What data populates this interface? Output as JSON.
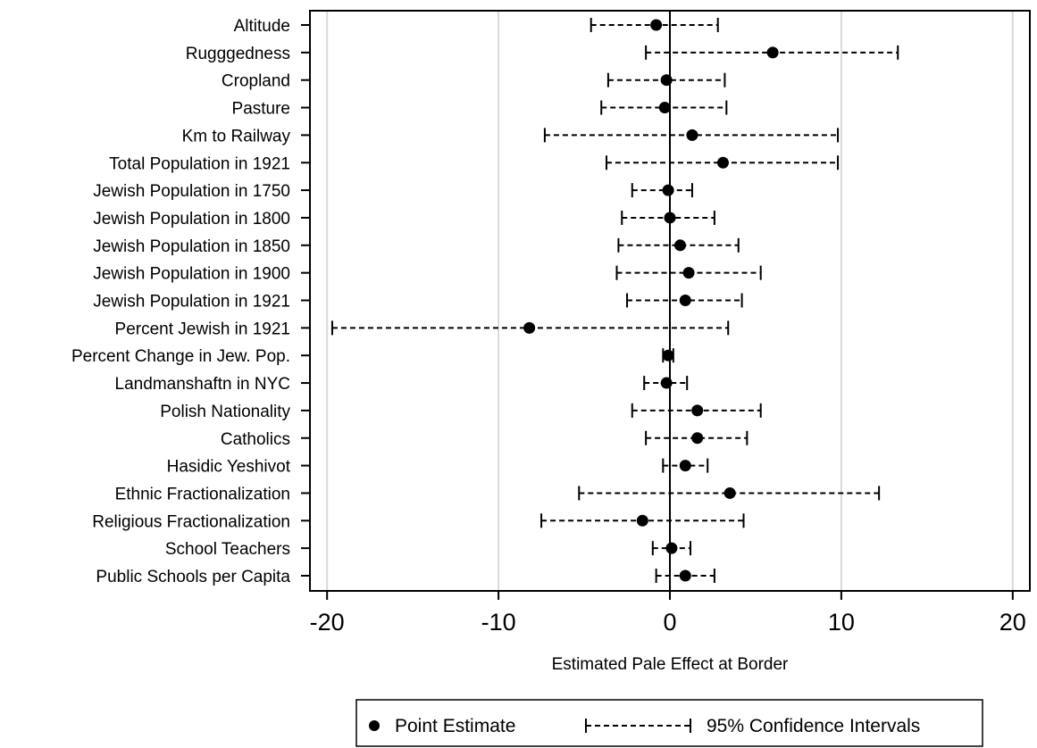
{
  "chart_data": {
    "type": "scatter",
    "xlabel": "Estimated Pale Effect at Border",
    "xlim": [
      -21,
      21
    ],
    "xticks": [
      -20,
      -10,
      0,
      10,
      20
    ],
    "xtick_labels": [
      "-20",
      "-10",
      "0",
      "10",
      "20"
    ],
    "grid": "vertical",
    "legend_position": "bottom",
    "legend": {
      "point_label": "Point Estimate",
      "ci_label": "95% Confidence Intervals"
    },
    "rows": [
      {
        "label": "Altitude",
        "estimate": -0.8,
        "lower": -4.6,
        "upper": 2.8
      },
      {
        "label": "Rugggedness",
        "estimate": 6.0,
        "lower": -1.4,
        "upper": 13.3
      },
      {
        "label": "Cropland",
        "estimate": -0.2,
        "lower": -3.6,
        "upper": 3.2
      },
      {
        "label": "Pasture",
        "estimate": -0.3,
        "lower": -4.0,
        "upper": 3.3
      },
      {
        "label": "Km to Railway",
        "estimate": 1.3,
        "lower": -7.3,
        "upper": 9.8
      },
      {
        "label": "Total Population in 1921",
        "estimate": 3.1,
        "lower": -3.7,
        "upper": 9.8
      },
      {
        "label": "Jewish Population in 1750",
        "estimate": -0.1,
        "lower": -2.2,
        "upper": 1.3
      },
      {
        "label": "Jewish Population in 1800",
        "estimate": 0.0,
        "lower": -2.8,
        "upper": 2.6
      },
      {
        "label": "Jewish Population in 1850",
        "estimate": 0.6,
        "lower": -3.0,
        "upper": 4.0
      },
      {
        "label": "Jewish Population in 1900",
        "estimate": 1.1,
        "lower": -3.1,
        "upper": 5.3
      },
      {
        "label": "Jewish Population in 1921",
        "estimate": 0.9,
        "lower": -2.5,
        "upper": 4.2
      },
      {
        "label": "Percent Jewish in 1921",
        "estimate": -8.2,
        "lower": -19.7,
        "upper": 3.4
      },
      {
        "label": "Percent Change in Jew. Pop.",
        "estimate": -0.1,
        "lower": -0.4,
        "upper": 0.2
      },
      {
        "label": "Landmanshaftn in NYC",
        "estimate": -0.2,
        "lower": -1.5,
        "upper": 1.0
      },
      {
        "label": "Polish Nationality",
        "estimate": 1.6,
        "lower": -2.2,
        "upper": 5.3
      },
      {
        "label": "Catholics",
        "estimate": 1.6,
        "lower": -1.4,
        "upper": 4.5
      },
      {
        "label": "Hasidic Yeshivot",
        "estimate": 0.9,
        "lower": -0.4,
        "upper": 2.2
      },
      {
        "label": "Ethnic Fractionalization",
        "estimate": 3.5,
        "lower": -5.3,
        "upper": 12.2
      },
      {
        "label": "Religious Fractionalization",
        "estimate": -1.6,
        "lower": -7.5,
        "upper": 4.3
      },
      {
        "label": "School Teachers",
        "estimate": 0.1,
        "lower": -1.0,
        "upper": 1.2
      },
      {
        "label": "Public Schools per Capita",
        "estimate": 0.9,
        "lower": -0.8,
        "upper": 2.6
      }
    ]
  }
}
